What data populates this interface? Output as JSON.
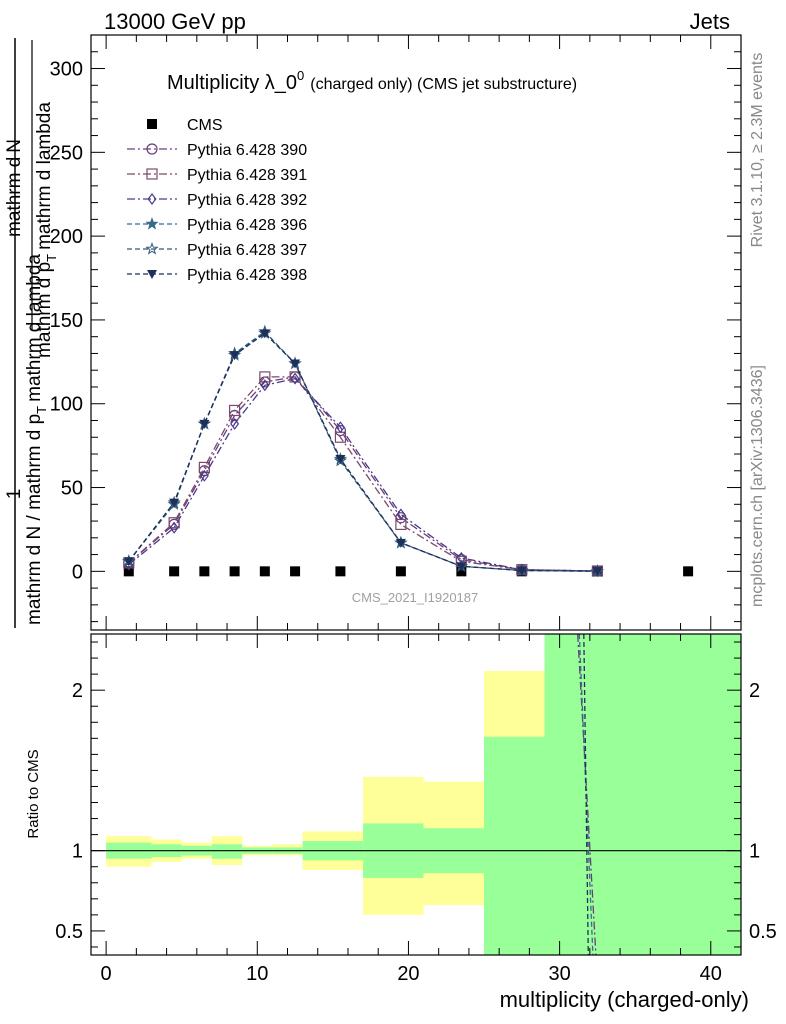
{
  "header": {
    "left": "13000 GeV pp",
    "right": "Jets"
  },
  "side_text": {
    "rivet": "Rivet 3.1.10, ≥ 2.3M events",
    "mcplots": "mcplots.cern.ch [arXiv:1306.3436]"
  },
  "chart_data": [
    {
      "type": "line",
      "title_main": "Multiplicity λ_0",
      "title_sup": "0",
      "title_rest": "(charged only) (CMS jet substructure)",
      "ylabel": "1 / (mathrm d N / mathrm d p_T mathrm d lambda) · mathrm d N / mathrm d p_T mathrm d lambda",
      "ylabel_parts": {
        "num_pre": "1",
        "den": "mathrm d N / mathrm d p",
        "den_sub": "T",
        "den_post": "mathrm d lambda",
        "frac_num": "mathrm d",
        "frac_num2": "N",
        "frac_den": "mathrm d p",
        "frac_den_sub": "T",
        "frac_den_post": "mathrm d lambda"
      },
      "xlim": [
        -1,
        42
      ],
      "ylim": [
        -35,
        320
      ],
      "yticks": [
        0,
        50,
        100,
        150,
        200,
        250,
        300
      ],
      "watermark": "CMS_2021_I1920187",
      "legend_position": "top-left",
      "series": [
        {
          "name": "CMS",
          "color": "#000000",
          "marker": "filled-square",
          "dash": "none",
          "x": [
            1.5,
            4.5,
            6.5,
            8.5,
            10.5,
            12.5,
            15.5,
            19.5,
            23.5,
            27.5,
            32.5,
            38.5
          ],
          "y": [
            0,
            0,
            0,
            0,
            0,
            0,
            0,
            0,
            0,
            0,
            0,
            0
          ]
        },
        {
          "name": "Pythia 6.428 390",
          "color": "#6a3d7a",
          "marker": "open-circle",
          "dash": "8,3,2,3",
          "x": [
            1.5,
            4.5,
            6.5,
            8.5,
            10.5,
            12.5,
            15.5,
            19.5,
            23.5,
            27.5,
            32.5
          ],
          "y": [
            5,
            28,
            60,
            93,
            113,
            116,
            84,
            32,
            7,
            1,
            0.2
          ]
        },
        {
          "name": "Pythia 6.428 391",
          "color": "#7a4a6a",
          "marker": "open-square",
          "dash": "8,3,2,3",
          "x": [
            1.5,
            4.5,
            6.5,
            8.5,
            10.5,
            12.5,
            15.5,
            19.5,
            23.5,
            27.5,
            32.5
          ],
          "y": [
            5,
            29,
            62,
            96,
            116,
            116,
            80,
            28,
            6,
            1,
            0.2
          ]
        },
        {
          "name": "Pythia 6.428 392",
          "color": "#4a3a8a",
          "marker": "open-diamond",
          "dash": "8,3,2,3",
          "x": [
            1.5,
            4.5,
            6.5,
            8.5,
            10.5,
            12.5,
            15.5,
            19.5,
            23.5,
            27.5,
            32.5
          ],
          "y": [
            4,
            26,
            57,
            88,
            111,
            115,
            86,
            34,
            8,
            1,
            0.2
          ]
        },
        {
          "name": "Pythia 6.428 396",
          "color": "#3a6a8a",
          "marker": "filled-star",
          "dash": "5,3",
          "x": [
            1.5,
            4.5,
            6.5,
            8.5,
            10.5,
            12.5,
            15.5,
            19.5,
            23.5,
            27.5,
            32.5
          ],
          "y": [
            6,
            40,
            88,
            129,
            142,
            124,
            67,
            17,
            3,
            0.5,
            0.1
          ]
        },
        {
          "name": "Pythia 6.428 397",
          "color": "#2f5a7a",
          "marker": "open-star",
          "dash": "5,3",
          "x": [
            1.5,
            4.5,
            6.5,
            8.5,
            10.5,
            12.5,
            15.5,
            19.5,
            23.5,
            27.5,
            32.5
          ],
          "y": [
            6,
            41,
            88,
            130,
            143,
            124,
            66,
            17,
            3,
            0.5,
            0.1
          ]
        },
        {
          "name": "Pythia 6.428 398",
          "color": "#1f2f5a",
          "marker": "filled-triangle-down",
          "dash": "5,3",
          "x": [
            1.5,
            4.5,
            6.5,
            8.5,
            10.5,
            12.5,
            15.5,
            19.5,
            23.5,
            27.5,
            32.5
          ],
          "y": [
            6,
            41,
            88,
            129,
            142,
            124,
            67,
            17,
            3,
            0.5,
            0.1
          ]
        }
      ]
    },
    {
      "type": "area",
      "ylabel": "Ratio to CMS",
      "xlabel": "multiplicity (charged-only)",
      "xlim": [
        -1,
        42
      ],
      "ylim": [
        0.35,
        2.35
      ],
      "xticks": [
        0,
        10,
        20,
        30,
        40
      ],
      "yticks": [
        0.5,
        1,
        2
      ],
      "reference_line": 1,
      "band_colors": {
        "total": "#ffff99",
        "stat": "#99ff99"
      },
      "bins": [
        {
          "lo": 0,
          "hi": 3,
          "total": [
            0.9,
            1.09
          ],
          "stat": [
            0.95,
            1.05
          ]
        },
        {
          "lo": 3,
          "hi": 5,
          "total": [
            0.93,
            1.07
          ],
          "stat": [
            0.96,
            1.04
          ]
        },
        {
          "lo": 5,
          "hi": 7,
          "total": [
            0.95,
            1.05
          ],
          "stat": [
            0.97,
            1.03
          ]
        },
        {
          "lo": 7,
          "hi": 9,
          "total": [
            0.91,
            1.09
          ],
          "stat": [
            0.95,
            1.04
          ]
        },
        {
          "lo": 9,
          "hi": 11,
          "total": [
            0.97,
            1.03
          ],
          "stat": [
            0.98,
            1.02
          ]
        },
        {
          "lo": 11,
          "hi": 13,
          "total": [
            0.97,
            1.04
          ],
          "stat": [
            0.98,
            1.02
          ]
        },
        {
          "lo": 13,
          "hi": 17,
          "total": [
            0.88,
            1.12
          ],
          "stat": [
            0.94,
            1.06
          ]
        },
        {
          "lo": 17,
          "hi": 21,
          "total": [
            0.6,
            1.46
          ],
          "stat": [
            0.83,
            1.17
          ]
        },
        {
          "lo": 21,
          "hi": 25,
          "total": [
            0.66,
            1.43
          ],
          "stat": [
            0.86,
            1.14
          ]
        },
        {
          "lo": 25,
          "hi": 29,
          "total": [
            0.35,
            2.12
          ],
          "stat": [
            0.35,
            1.71
          ]
        },
        {
          "lo": 29,
          "hi": 42,
          "total": [
            0.35,
            2.35
          ],
          "stat": [
            0.35,
            2.35
          ]
        }
      ],
      "series": [
        {
          "color": "#6a3d7a",
          "dash": "8,3,2,3",
          "x": [
            31.2,
            32.4
          ],
          "y": [
            2.35,
            0.35
          ]
        },
        {
          "color": "#3a6a8a",
          "dash": "5,3",
          "x": [
            31.3,
            32.2
          ],
          "y": [
            2.35,
            0.35
          ]
        },
        {
          "color": "#1f2f5a",
          "dash": "5,3",
          "x": [
            31.6,
            31.9
          ],
          "y": [
            2.35,
            0.35
          ]
        }
      ]
    }
  ]
}
